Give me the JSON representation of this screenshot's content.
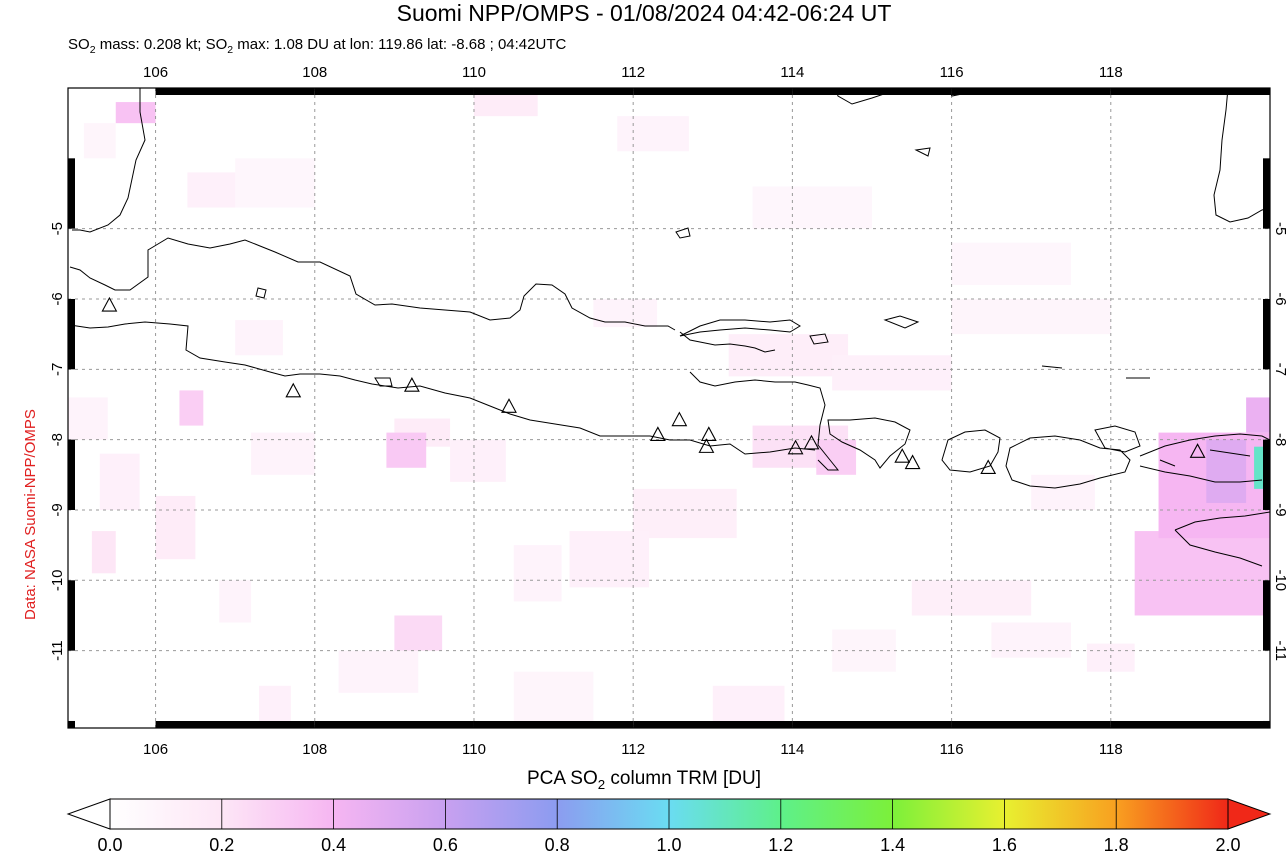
{
  "title": "Suomi NPP/OMPS - 01/08/2024 04:42-06:24 UT",
  "subtitle": {
    "mass_prefix": "SO",
    "mass_rest": " mass: 0.208 kt; SO",
    "max_rest": " max: 1.08 DU at lon: 119.86 lat: -8.68 ; 04:42UTC",
    "subscript": "2"
  },
  "credit": "Data: NASA Suomi-NPP/OMPS",
  "map": {
    "lon_range": [
      104.9,
      120.0
    ],
    "lat_range": [
      -12.1,
      -3.0
    ],
    "lon_ticks": [
      "106",
      "108",
      "110",
      "112",
      "114",
      "116",
      "118"
    ],
    "lat_ticks": [
      "-5",
      "-6",
      "-7",
      "-8",
      "-9",
      "-10",
      "-11"
    ],
    "grid": true,
    "coastline_color": "#000000",
    "volcano_marker": "triangle-icon",
    "volcanoes": [
      {
        "lon": 105.42,
        "lat": -6.1
      },
      {
        "lon": 107.73,
        "lat": -7.32
      },
      {
        "lon": 109.22,
        "lat": -7.24
      },
      {
        "lon": 110.44,
        "lat": -7.54
      },
      {
        "lon": 112.31,
        "lat": -7.94
      },
      {
        "lon": 112.58,
        "lat": -7.73
      },
      {
        "lon": 112.95,
        "lat": -7.94
      },
      {
        "lon": 112.92,
        "lat": -8.11
      },
      {
        "lon": 114.04,
        "lat": -8.13
      },
      {
        "lon": 114.24,
        "lat": -8.06
      },
      {
        "lon": 115.38,
        "lat": -8.25
      },
      {
        "lon": 115.51,
        "lat": -8.34
      },
      {
        "lon": 116.46,
        "lat": -8.41
      },
      {
        "lon": 119.09,
        "lat": -8.18
      }
    ],
    "so2_pixels": [
      {
        "lon": 105.5,
        "lat": -3.2,
        "dlon": 0.5,
        "dlat": 0.3,
        "v": 0.35
      },
      {
        "lon": 110.0,
        "lat": -3.1,
        "dlon": 0.8,
        "dlat": 0.3,
        "v": 0.15
      },
      {
        "lon": 111.8,
        "lat": -3.4,
        "dlon": 0.9,
        "dlat": 0.5,
        "v": 0.1
      },
      {
        "lon": 105.1,
        "lat": -3.5,
        "dlon": 0.4,
        "dlat": 0.5,
        "v": 0.08
      },
      {
        "lon": 106.4,
        "lat": -4.2,
        "dlon": 0.8,
        "dlat": 0.5,
        "v": 0.12
      },
      {
        "lon": 107.0,
        "lat": -4.0,
        "dlon": 1.0,
        "dlat": 0.7,
        "v": 0.07
      },
      {
        "lon": 113.5,
        "lat": -4.4,
        "dlon": 1.5,
        "dlat": 0.6,
        "v": 0.07
      },
      {
        "lon": 116.0,
        "lat": -5.2,
        "dlon": 1.5,
        "dlat": 0.6,
        "v": 0.07
      },
      {
        "lon": 111.5,
        "lat": -6.0,
        "dlon": 0.8,
        "dlat": 0.4,
        "v": 0.1
      },
      {
        "lon": 107.0,
        "lat": -6.3,
        "dlon": 0.6,
        "dlat": 0.5,
        "v": 0.1
      },
      {
        "lon": 113.2,
        "lat": -6.5,
        "dlon": 1.5,
        "dlat": 0.6,
        "v": 0.14
      },
      {
        "lon": 114.5,
        "lat": -6.8,
        "dlon": 1.5,
        "dlat": 0.5,
        "v": 0.12
      },
      {
        "lon": 116.0,
        "lat": -6.0,
        "dlon": 2.0,
        "dlat": 0.5,
        "v": 0.08
      },
      {
        "lon": 104.9,
        "lat": -7.4,
        "dlon": 0.5,
        "dlat": 0.6,
        "v": 0.1
      },
      {
        "lon": 106.3,
        "lat": -7.3,
        "dlon": 0.3,
        "dlat": 0.5,
        "v": 0.3
      },
      {
        "lon": 109.0,
        "lat": -7.7,
        "dlon": 0.7,
        "dlat": 0.4,
        "v": 0.15
      },
      {
        "lon": 108.9,
        "lat": -7.9,
        "dlon": 0.5,
        "dlat": 0.5,
        "v": 0.32
      },
      {
        "lon": 109.7,
        "lat": -8.0,
        "dlon": 0.7,
        "dlat": 0.6,
        "v": 0.12
      },
      {
        "lon": 107.2,
        "lat": -7.9,
        "dlon": 0.8,
        "dlat": 0.6,
        "v": 0.1
      },
      {
        "lon": 105.3,
        "lat": -8.2,
        "dlon": 0.5,
        "dlat": 0.8,
        "v": 0.12
      },
      {
        "lon": 106.0,
        "lat": -8.8,
        "dlon": 0.5,
        "dlat": 0.9,
        "v": 0.15
      },
      {
        "lon": 105.2,
        "lat": -9.3,
        "dlon": 0.3,
        "dlat": 0.6,
        "v": 0.2
      },
      {
        "lon": 112.0,
        "lat": -8.7,
        "dlon": 1.3,
        "dlat": 0.7,
        "v": 0.13
      },
      {
        "lon": 113.5,
        "lat": -7.8,
        "dlon": 1.2,
        "dlat": 0.6,
        "v": 0.22
      },
      {
        "lon": 114.3,
        "lat": -8.0,
        "dlon": 0.5,
        "dlat": 0.5,
        "v": 0.3
      },
      {
        "lon": 111.2,
        "lat": -9.3,
        "dlon": 1.0,
        "dlat": 0.8,
        "v": 0.12
      },
      {
        "lon": 110.5,
        "lat": -9.5,
        "dlon": 0.6,
        "dlat": 0.8,
        "v": 0.1
      },
      {
        "lon": 106.8,
        "lat": -10.0,
        "dlon": 0.4,
        "dlat": 0.6,
        "v": 0.1
      },
      {
        "lon": 109.0,
        "lat": -10.5,
        "dlon": 0.6,
        "dlat": 0.5,
        "v": 0.25
      },
      {
        "lon": 108.3,
        "lat": -11.0,
        "dlon": 1.0,
        "dlat": 0.6,
        "v": 0.1
      },
      {
        "lon": 107.3,
        "lat": -11.5,
        "dlon": 0.4,
        "dlat": 0.8,
        "v": 0.12
      },
      {
        "lon": 110.5,
        "lat": -11.3,
        "dlon": 1.0,
        "dlat": 0.7,
        "v": 0.08
      },
      {
        "lon": 113.0,
        "lat": -11.5,
        "dlon": 0.9,
        "dlat": 0.6,
        "v": 0.12
      },
      {
        "lon": 115.5,
        "lat": -10.0,
        "dlon": 1.5,
        "dlat": 0.5,
        "v": 0.13
      },
      {
        "lon": 116.5,
        "lat": -10.6,
        "dlon": 1.0,
        "dlat": 0.5,
        "v": 0.1
      },
      {
        "lon": 117.7,
        "lat": -10.9,
        "dlon": 0.6,
        "dlat": 0.4,
        "v": 0.12
      },
      {
        "lon": 114.5,
        "lat": -10.7,
        "dlon": 0.8,
        "dlat": 0.6,
        "v": 0.08
      },
      {
        "lon": 117.0,
        "lat": -8.5,
        "dlon": 0.8,
        "dlat": 0.5,
        "v": 0.1
      },
      {
        "lon": 118.3,
        "lat": -9.3,
        "dlon": 1.7,
        "dlat": 1.2,
        "v": 0.35
      },
      {
        "lon": 118.6,
        "lat": -7.9,
        "dlon": 1.4,
        "dlat": 1.5,
        "v": 0.4
      },
      {
        "lon": 119.2,
        "lat": -8.0,
        "dlon": 0.5,
        "dlat": 0.9,
        "v": 0.5
      },
      {
        "lon": 119.7,
        "lat": -7.4,
        "dlon": 0.3,
        "dlat": 0.5,
        "v": 0.45
      },
      {
        "lon": 119.8,
        "lat": -8.1,
        "dlon": 0.2,
        "dlat": 0.6,
        "v": 1.08
      }
    ]
  },
  "colorbar": {
    "title_prefix": "PCA SO",
    "title_subscript": "2",
    "title_rest": " column TRM [DU]",
    "min": 0.0,
    "max": 2.0,
    "tick_labels": [
      "0.0",
      "0.2",
      "0.4",
      "0.6",
      "0.8",
      "1.0",
      "1.2",
      "1.4",
      "1.6",
      "1.8",
      "2.0"
    ],
    "tick_values": [
      0.0,
      0.2,
      0.4,
      0.6,
      0.8,
      1.0,
      1.2,
      1.4,
      1.6,
      1.8,
      2.0
    ],
    "colors": [
      "#ffffff",
      "#fde6f6",
      "#f6b6f2",
      "#c8a0f0",
      "#8c9cf0",
      "#6adcf2",
      "#5ef08a",
      "#7cf03a",
      "#e8f030",
      "#f8a020",
      "#f02818"
    ],
    "under_color": "#ffffff",
    "over_color": "#f02818"
  }
}
